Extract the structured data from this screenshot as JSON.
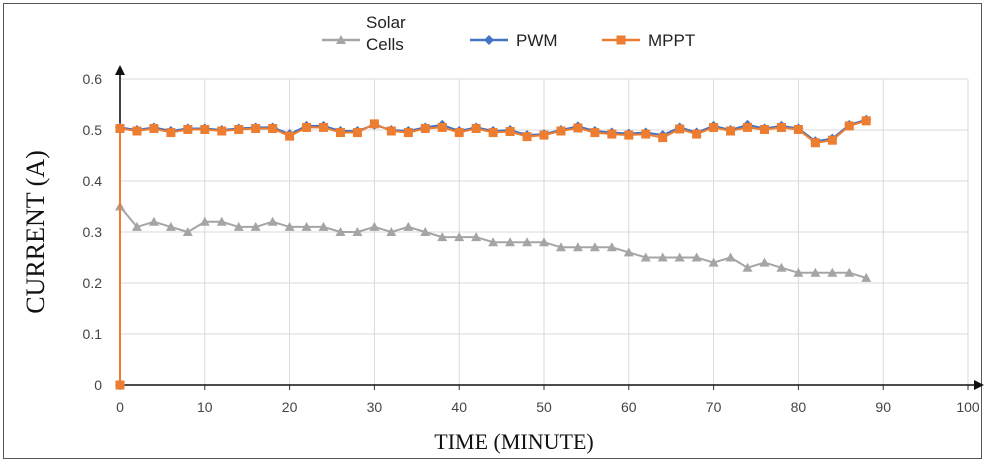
{
  "chart_data": {
    "type": "line",
    "xlabel": "TIME (MINUTE)",
    "ylabel": "CURRENT (A)",
    "xlim": [
      0,
      100
    ],
    "ylim": [
      0,
      0.6
    ],
    "x_ticks": [
      "0",
      "10",
      "20",
      "30",
      "40",
      "50",
      "60",
      "70",
      "80",
      "90",
      "100"
    ],
    "y_ticks": [
      "0",
      "0.1",
      "0.2",
      "0.3",
      "0.4",
      "0.5",
      "0.6"
    ],
    "grid": true,
    "legend_position": "top",
    "series": [
      {
        "name_lines": [
          "Solar",
          "Cells"
        ],
        "color": "#a5a5a5",
        "marker": "triangle",
        "points": [
          [
            0,
            0.35
          ],
          [
            2,
            0.31
          ],
          [
            4,
            0.32
          ],
          [
            6,
            0.31
          ],
          [
            8,
            0.3
          ],
          [
            10,
            0.32
          ],
          [
            12,
            0.32
          ],
          [
            14,
            0.31
          ],
          [
            16,
            0.31
          ],
          [
            18,
            0.32
          ],
          [
            20,
            0.31
          ],
          [
            22,
            0.31
          ],
          [
            24,
            0.31
          ],
          [
            26,
            0.3
          ],
          [
            28,
            0.3
          ],
          [
            30,
            0.31
          ],
          [
            32,
            0.3
          ],
          [
            34,
            0.31
          ],
          [
            36,
            0.3
          ],
          [
            38,
            0.29
          ],
          [
            40,
            0.29
          ],
          [
            42,
            0.29
          ],
          [
            44,
            0.28
          ],
          [
            46,
            0.28
          ],
          [
            48,
            0.28
          ],
          [
            50,
            0.28
          ],
          [
            52,
            0.27
          ],
          [
            54,
            0.27
          ],
          [
            56,
            0.27
          ],
          [
            58,
            0.27
          ],
          [
            60,
            0.26
          ],
          [
            62,
            0.25
          ],
          [
            64,
            0.25
          ],
          [
            66,
            0.25
          ],
          [
            68,
            0.25
          ],
          [
            70,
            0.24
          ],
          [
            72,
            0.25
          ],
          [
            74,
            0.23
          ],
          [
            76,
            0.24
          ],
          [
            78,
            0.23
          ],
          [
            80,
            0.22
          ],
          [
            82,
            0.22
          ],
          [
            84,
            0.22
          ],
          [
            86,
            0.22
          ],
          [
            88,
            0.21
          ]
        ]
      },
      {
        "name": "PWM",
        "color": "#4472c4",
        "marker": "diamond",
        "points": [
          [
            0,
            0
          ],
          [
            0,
            0.505
          ],
          [
            2,
            0.5
          ],
          [
            4,
            0.505
          ],
          [
            6,
            0.498
          ],
          [
            8,
            0.503
          ],
          [
            10,
            0.503
          ],
          [
            12,
            0.5
          ],
          [
            14,
            0.503
          ],
          [
            16,
            0.505
          ],
          [
            18,
            0.505
          ],
          [
            20,
            0.492
          ],
          [
            22,
            0.508
          ],
          [
            24,
            0.508
          ],
          [
            26,
            0.498
          ],
          [
            28,
            0.498
          ],
          [
            30,
            0.51
          ],
          [
            32,
            0.5
          ],
          [
            34,
            0.498
          ],
          [
            36,
            0.505
          ],
          [
            38,
            0.51
          ],
          [
            40,
            0.498
          ],
          [
            42,
            0.505
          ],
          [
            44,
            0.498
          ],
          [
            46,
            0.5
          ],
          [
            48,
            0.49
          ],
          [
            50,
            0.492
          ],
          [
            52,
            0.5
          ],
          [
            54,
            0.507
          ],
          [
            56,
            0.498
          ],
          [
            58,
            0.495
          ],
          [
            60,
            0.493
          ],
          [
            62,
            0.495
          ],
          [
            64,
            0.49
          ],
          [
            66,
            0.505
          ],
          [
            68,
            0.495
          ],
          [
            70,
            0.508
          ],
          [
            72,
            0.5
          ],
          [
            74,
            0.51
          ],
          [
            76,
            0.503
          ],
          [
            78,
            0.508
          ],
          [
            80,
            0.503
          ],
          [
            82,
            0.478
          ],
          [
            84,
            0.483
          ],
          [
            86,
            0.51
          ],
          [
            88,
            0.52
          ]
        ]
      },
      {
        "name": "MPPT",
        "color": "#ed7d31",
        "marker": "square",
        "points": [
          [
            0,
            0
          ],
          [
            0,
            0.503
          ],
          [
            2,
            0.498
          ],
          [
            4,
            0.503
          ],
          [
            6,
            0.495
          ],
          [
            8,
            0.501
          ],
          [
            10,
            0.501
          ],
          [
            12,
            0.498
          ],
          [
            14,
            0.501
          ],
          [
            16,
            0.503
          ],
          [
            18,
            0.503
          ],
          [
            20,
            0.488
          ],
          [
            22,
            0.505
          ],
          [
            24,
            0.505
          ],
          [
            26,
            0.495
          ],
          [
            28,
            0.495
          ],
          [
            30,
            0.512
          ],
          [
            32,
            0.498
          ],
          [
            34,
            0.495
          ],
          [
            36,
            0.503
          ],
          [
            38,
            0.505
          ],
          [
            40,
            0.495
          ],
          [
            42,
            0.503
          ],
          [
            44,
            0.495
          ],
          [
            46,
            0.497
          ],
          [
            48,
            0.487
          ],
          [
            50,
            0.49
          ],
          [
            52,
            0.498
          ],
          [
            54,
            0.504
          ],
          [
            56,
            0.495
          ],
          [
            58,
            0.492
          ],
          [
            60,
            0.49
          ],
          [
            62,
            0.492
          ],
          [
            64,
            0.485
          ],
          [
            66,
            0.502
          ],
          [
            68,
            0.492
          ],
          [
            70,
            0.505
          ],
          [
            72,
            0.498
          ],
          [
            74,
            0.505
          ],
          [
            76,
            0.501
          ],
          [
            78,
            0.505
          ],
          [
            80,
            0.501
          ],
          [
            82,
            0.475
          ],
          [
            84,
            0.48
          ],
          [
            86,
            0.508
          ],
          [
            88,
            0.518
          ]
        ]
      }
    ]
  }
}
